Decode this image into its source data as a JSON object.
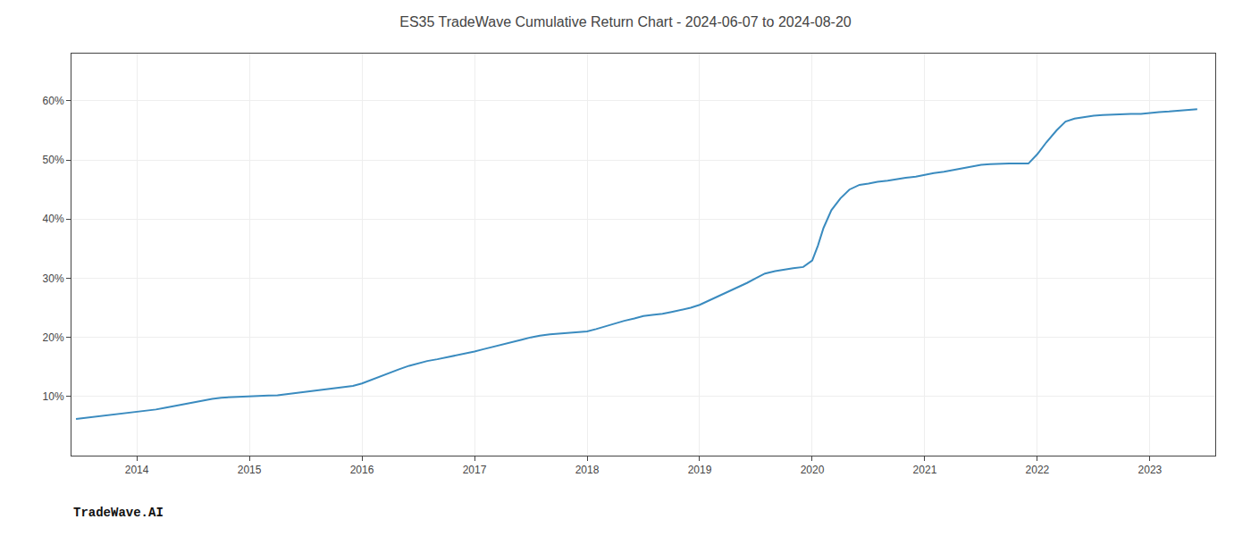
{
  "chart_data": {
    "type": "line",
    "title": "ES35 TradeWave Cumulative Return Chart - 2024-06-07 to 2024-08-20",
    "annotations": [
      "TradeWave.AI"
    ],
    "color": "#3a8bbf",
    "grid": true,
    "x": [
      2013.46,
      2013.55,
      2013.65,
      2013.75,
      2013.85,
      2013.92,
      2014.0,
      2014.08,
      2014.17,
      2014.25,
      2014.33,
      2014.42,
      2014.5,
      2014.58,
      2014.67,
      2014.75,
      2014.83,
      2014.92,
      2015.0,
      2015.08,
      2015.17,
      2015.25,
      2015.33,
      2015.42,
      2015.5,
      2015.58,
      2015.67,
      2015.75,
      2015.83,
      2015.92,
      2016.0,
      2016.08,
      2016.17,
      2016.25,
      2016.33,
      2016.42,
      2016.5,
      2016.58,
      2016.67,
      2016.75,
      2016.83,
      2016.92,
      2017.0,
      2017.08,
      2017.17,
      2017.25,
      2017.33,
      2017.42,
      2017.5,
      2017.58,
      2017.67,
      2017.75,
      2017.83,
      2017.92,
      2018.0,
      2018.08,
      2018.17,
      2018.25,
      2018.33,
      2018.42,
      2018.5,
      2018.58,
      2018.67,
      2018.75,
      2018.83,
      2018.92,
      2019.0,
      2019.08,
      2019.17,
      2019.25,
      2019.33,
      2019.42,
      2019.5,
      2019.58,
      2019.67,
      2019.75,
      2019.83,
      2019.92,
      2020.0,
      2020.05,
      2020.1,
      2020.17,
      2020.25,
      2020.33,
      2020.42,
      2020.5,
      2020.58,
      2020.67,
      2020.75,
      2020.83,
      2020.92,
      2021.0,
      2021.08,
      2021.17,
      2021.25,
      2021.33,
      2021.42,
      2021.5,
      2021.58,
      2021.67,
      2021.75,
      2021.83,
      2021.92,
      2022.0,
      2022.08,
      2022.17,
      2022.25,
      2022.33,
      2022.42,
      2022.5,
      2022.58,
      2022.67,
      2022.75,
      2022.83,
      2022.92,
      2023.0,
      2023.08,
      2023.17,
      2023.25,
      2023.33,
      2023.42
    ],
    "values": [
      6.2,
      6.4,
      6.6,
      6.8,
      7.0,
      7.2,
      7.4,
      7.6,
      7.8,
      8.1,
      8.4,
      8.7,
      9.0,
      9.3,
      9.6,
      9.8,
      9.9,
      10.0,
      10.05,
      10.1,
      10.15,
      10.2,
      10.4,
      10.6,
      10.8,
      11.0,
      11.2,
      11.4,
      11.6,
      11.8,
      12.2,
      12.8,
      13.4,
      14.0,
      14.6,
      15.2,
      15.6,
      16.0,
      16.3,
      16.6,
      16.9,
      17.2,
      17.6,
      18.0,
      18.4,
      18.8,
      19.2,
      19.6,
      20.0,
      20.3,
      20.5,
      20.6,
      20.7,
      20.8,
      21.0,
      21.4,
      21.9,
      22.4,
      22.8,
      23.2,
      23.6,
      23.8,
      24.0,
      24.3,
      24.6,
      25.0,
      25.5,
      26.2,
      27.0,
      27.8,
      28.5,
      29.2,
      30.0,
      30.8,
      31.2,
      31.5,
      31.7,
      31.9,
      33.0,
      35.5,
      38.5,
      41.5,
      43.5,
      45.0,
      45.8,
      46.0,
      46.3,
      46.5,
      46.8,
      47.0,
      47.2,
      47.5,
      47.8,
      48.0,
      48.3,
      48.6,
      48.9,
      49.2,
      49.3,
      49.4,
      49.4,
      49.4,
      49.4,
      51.0,
      53.0,
      55.0,
      56.5,
      57.0,
      57.3,
      57.5,
      57.6,
      57.7,
      57.7,
      57.8,
      57.8,
      58.0,
      58.1,
      58.2,
      58.3,
      58.5,
      58.6
    ],
    "xlim": [
      2013.42,
      2023.58
    ],
    "ylim": [
      0,
      68
    ],
    "xticks": [
      2014,
      2015,
      2016,
      2017,
      2018,
      2019,
      2020,
      2021,
      2022,
      2023
    ],
    "yticks": [
      {
        "value": 10,
        "label": "10%"
      },
      {
        "value": 20,
        "label": "20%"
      },
      {
        "value": 30,
        "label": "30%"
      },
      {
        "value": 40,
        "label": "40%"
      },
      {
        "value": 50,
        "label": "50%"
      },
      {
        "value": 60,
        "label": "60%"
      }
    ]
  }
}
